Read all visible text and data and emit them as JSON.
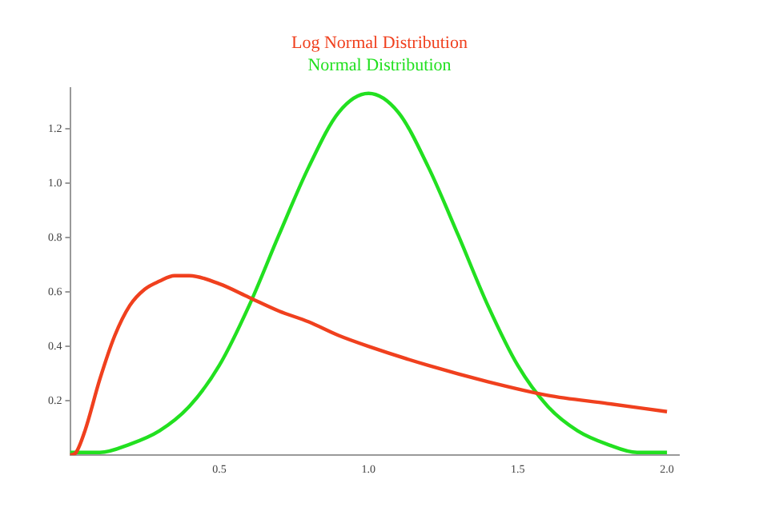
{
  "chart_data": {
    "type": "line",
    "legend": "top",
    "grid": false,
    "marker": "none",
    "line_style": "solid",
    "xlim": [
      0,
      2.04
    ],
    "ylim": [
      0,
      1.35
    ],
    "xticks": [
      0.5,
      {
        "value": 1,
        "label": "1.0"
      },
      1.5,
      {
        "value": 2,
        "label": "2.0"
      }
    ],
    "yticks": [
      0.2,
      0.4,
      0.6,
      0.8,
      {
        "value": 1,
        "label": "1.0"
      },
      1.2
    ],
    "series": [
      {
        "name": "Log Normal Distribution",
        "color": "#f0401e",
        "x": [
          0,
          0.02,
          0.05,
          0.1,
          0.15,
          0.2,
          0.25,
          0.3,
          0.35,
          0.4,
          0.5,
          0.6,
          0.7,
          0.8,
          0.9,
          1.0,
          1.2,
          1.4,
          1.6,
          1.8,
          2.0
        ],
        "values": [
          0,
          0.01,
          0.09,
          0.28,
          0.44,
          0.55,
          0.61,
          0.64,
          0.66,
          0.66,
          0.63,
          0.58,
          0.53,
          0.49,
          0.44,
          0.4,
          0.33,
          0.27,
          0.22,
          0.19,
          0.16
        ]
      },
      {
        "name": "Normal Distribution",
        "color": "#22e020",
        "x": [
          0,
          0.1,
          0.2,
          0.3,
          0.4,
          0.5,
          0.6,
          0.7,
          0.8,
          0.9,
          1.0,
          1.1,
          1.2,
          1.3,
          1.4,
          1.5,
          1.6,
          1.7,
          1.8,
          1.9,
          2.0
        ],
        "values": [
          0.01,
          0.01,
          0.04,
          0.09,
          0.18,
          0.33,
          0.55,
          0.81,
          1.06,
          1.26,
          1.33,
          1.26,
          1.06,
          0.81,
          0.55,
          0.33,
          0.18,
          0.09,
          0.04,
          0.01,
          0.01
        ]
      }
    ]
  }
}
